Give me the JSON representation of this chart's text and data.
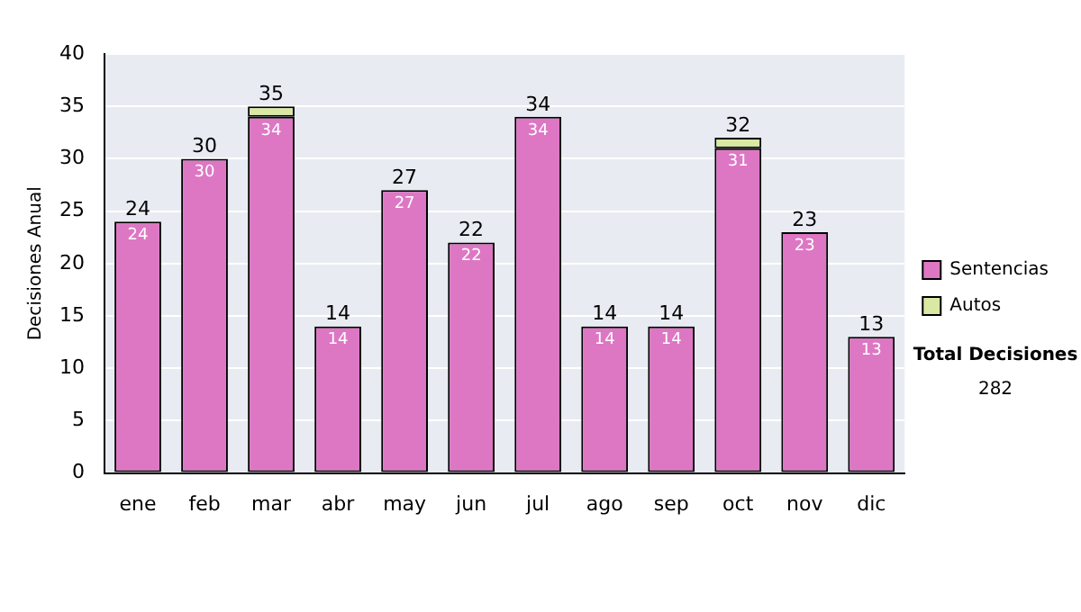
{
  "chart_data": {
    "type": "bar",
    "stacked": true,
    "ylabel": "Decisiones Anual",
    "categories": [
      "ene",
      "feb",
      "mar",
      "abr",
      "may",
      "jun",
      "jul",
      "ago",
      "sep",
      "oct",
      "nov",
      "dic"
    ],
    "series": [
      {
        "name": "Sentencias",
        "color": "#dd77c4",
        "values": [
          24,
          30,
          34,
          14,
          27,
          22,
          34,
          14,
          14,
          31,
          23,
          13
        ],
        "value_labels": [
          "24",
          "30",
          "34",
          "14",
          "27",
          "22",
          "34",
          "14",
          "14",
          "31",
          "23",
          "13"
        ]
      },
      {
        "name": "Autos",
        "color": "#d9e8a3",
        "values": [
          0,
          0,
          1,
          0,
          0,
          0,
          0,
          0,
          0,
          1,
          0,
          0
        ]
      }
    ],
    "totals": [
      "24",
      "30",
      "35",
      "14",
      "27",
      "22",
      "34",
      "14",
      "14",
      "32",
      "23",
      "13"
    ],
    "ylim": [
      0,
      40
    ],
    "yticks": [
      0,
      5,
      10,
      15,
      20,
      25,
      30,
      35,
      40
    ],
    "grid": "y",
    "legend": "right",
    "annotations": [
      "Total Decisiones",
      "282"
    ]
  }
}
